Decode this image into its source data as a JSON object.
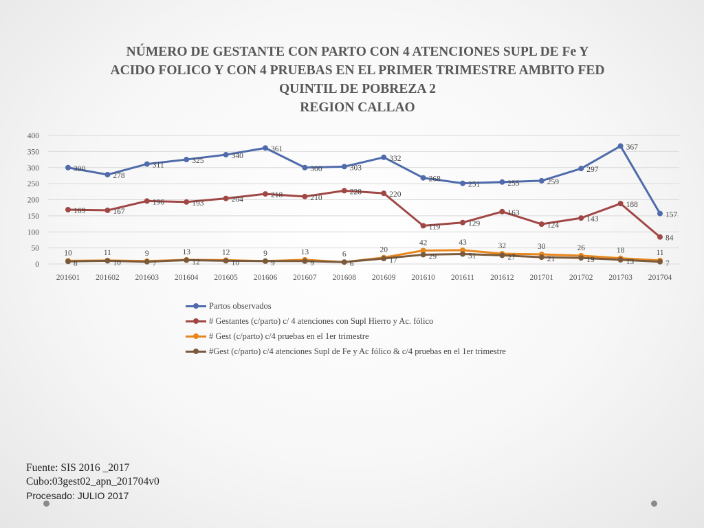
{
  "title_lines": [
    "NÚMERO DE GESTANTE  CON PARTO CON 4 ATENCIONES SUPL DE Fe Y",
    "ACIDO FOLICO  Y CON 4 PRUEBAS EN EL PRIMER TRIMESTRE AMBITO FED",
    "QUINTIL DE POBREZA  2",
    "REGION CALLAO"
  ],
  "chart_data": {
    "type": "line",
    "title": "NÚMERO DE GESTANTE  CON PARTO CON 4 ATENCIONES SUPL DE Fe Y ACIDO FOLICO  Y CON 4 PRUEBAS EN EL PRIMER TRIMESTRE AMBITO FED QUINTIL DE POBREZA  2 REGION CALLAO",
    "xlabel": "",
    "ylabel": "",
    "ylim": [
      0,
      400
    ],
    "yticks": [
      0,
      50,
      100,
      150,
      200,
      250,
      300,
      350,
      400
    ],
    "grid": true,
    "legend_position": "bottom",
    "categories": [
      "201601",
      "201602",
      "201603",
      "201604",
      "201605",
      "201606",
      "201607",
      "201608",
      "201609",
      "201610",
      "201611",
      "201612",
      "201701",
      "201702",
      "201703",
      "201704"
    ],
    "series": [
      {
        "name": "Partos observados",
        "color": "#4f6bab",
        "values": [
          300,
          278,
          311,
          325,
          340,
          361,
          300,
          303,
          332,
          268,
          251,
          255,
          259,
          297,
          367,
          157
        ]
      },
      {
        "name": "# Gestantes (c/parto) c/ 4 atenciones con Supl Hierro y Ac. fólico",
        "color": "#a04745",
        "values": [
          169,
          167,
          196,
          193,
          204,
          218,
          210,
          228,
          220,
          119,
          129,
          163,
          124,
          143,
          188,
          84
        ]
      },
      {
        "name": "# Gest (c/parto) c/4 pruebas en el 1er trimestre",
        "color": "#e8861e",
        "values": [
          10,
          11,
          9,
          13,
          12,
          9,
          13,
          6,
          20,
          42,
          43,
          32,
          30,
          26,
          18,
          11
        ]
      },
      {
        "name": "#Gest (c/parto) c/4 atenciones Supl de Fe y Ac fólico & c/4 pruebas en el 1er trimestre",
        "color": "#7a5a3c",
        "values": [
          8,
          10,
          7,
          12,
          10,
          9,
          9,
          6,
          17,
          29,
          31,
          27,
          21,
          19,
          13,
          7
        ]
      }
    ]
  },
  "footer": {
    "source": "Fuente: SIS 2016 _2017",
    "cube": "Cubo:03gest02_apn_201704v0",
    "processed": "Procesado: JULIO 2017"
  }
}
